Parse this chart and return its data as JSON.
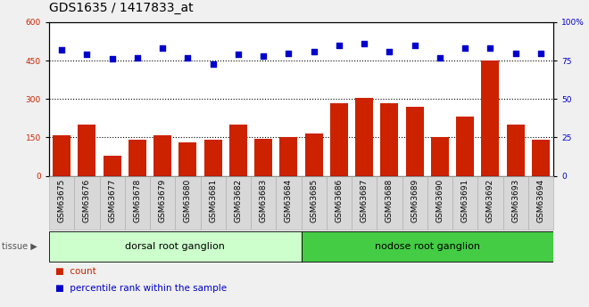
{
  "title": "GDS1635 / 1417833_at",
  "categories": [
    "GSM63675",
    "GSM63676",
    "GSM63677",
    "GSM63678",
    "GSM63679",
    "GSM63680",
    "GSM63681",
    "GSM63682",
    "GSM63683",
    "GSM63684",
    "GSM63685",
    "GSM63686",
    "GSM63687",
    "GSM63688",
    "GSM63689",
    "GSM63690",
    "GSM63691",
    "GSM63692",
    "GSM63693",
    "GSM63694"
  ],
  "counts": [
    160,
    200,
    80,
    140,
    160,
    130,
    140,
    200,
    145,
    150,
    165,
    285,
    305,
    285,
    270,
    150,
    230,
    450,
    200,
    140
  ],
  "percentiles": [
    82,
    79,
    76,
    77,
    83,
    77,
    73,
    79,
    78,
    80,
    81,
    85,
    86,
    81,
    85,
    77,
    83,
    83,
    80,
    80
  ],
  "bar_color": "#cc2200",
  "dot_color": "#0000cc",
  "left_ylim": [
    0,
    600
  ],
  "right_ylim": [
    0,
    100
  ],
  "left_yticks": [
    0,
    150,
    300,
    450,
    600
  ],
  "right_yticks": [
    0,
    25,
    50,
    75,
    100
  ],
  "right_ytick_labels": [
    "0",
    "25",
    "50",
    "75",
    "100%"
  ],
  "hlines": [
    150,
    300,
    450
  ],
  "tissue_groups": [
    {
      "label": "dorsal root ganglion",
      "start": 0,
      "end": 9,
      "color": "#ccffcc"
    },
    {
      "label": "nodose root ganglion",
      "start": 10,
      "end": 19,
      "color": "#44cc44"
    }
  ],
  "legend_count_label": "count",
  "legend_pct_label": "percentile rank within the sample",
  "tissue_label": "tissue ▶",
  "fig_bg": "#f0f0f0",
  "plot_bg": "#ffffff",
  "xtick_bg": "#d8d8d8",
  "title_fontsize": 10,
  "tick_fontsize": 6.5,
  "tissue_fontsize": 8,
  "legend_fontsize": 7.5
}
